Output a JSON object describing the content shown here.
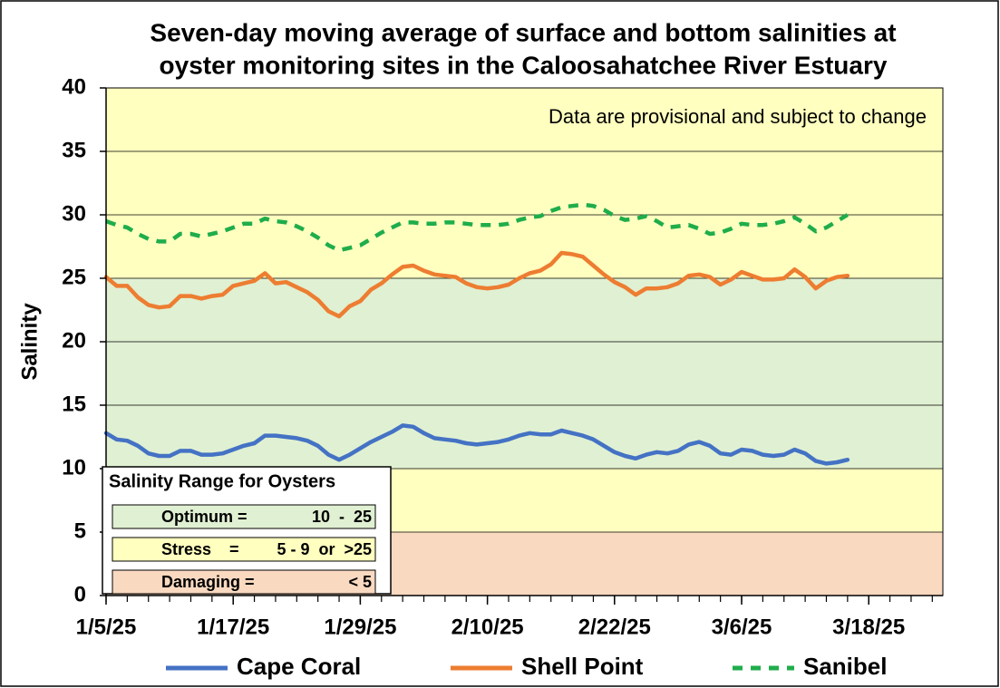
{
  "chart_data": {
    "type": "line",
    "title": [
      "Seven-day moving average of surface and bottom salinities at",
      "oyster monitoring sites in the Caloosahatchee River Estuary"
    ],
    "y_label": "Salinity",
    "annotation": "Data are provisional and subject to change",
    "ylim": [
      0,
      40
    ],
    "yticks": [
      0,
      5,
      10,
      15,
      20,
      25,
      30,
      35,
      40
    ],
    "grid": true,
    "xlim": [
      "2025-01-05",
      "2025-03-25"
    ],
    "xticks": [
      {
        "value": "2025-01-05",
        "label": "1/5/25"
      },
      {
        "value": "2025-01-17",
        "label": "1/17/25"
      },
      {
        "value": "2025-01-29",
        "label": "1/29/25"
      },
      {
        "value": "2025-02-10",
        "label": "2/10/25"
      },
      {
        "value": "2025-02-22",
        "label": "2/22/25"
      },
      {
        "value": "2025-03-06",
        "label": "3/6/25"
      },
      {
        "value": "2025-03-18",
        "label": "3/18/25"
      }
    ],
    "xminorticks": [
      "2025-01-05",
      "2025-01-07",
      "2025-01-09",
      "2025-01-11",
      "2025-01-13",
      "2025-01-15",
      "2025-01-17",
      "2025-01-19",
      "2025-01-21",
      "2025-01-23",
      "2025-01-25",
      "2025-01-27",
      "2025-01-29",
      "2025-01-31",
      "2025-02-02",
      "2025-02-04",
      "2025-02-06",
      "2025-02-08",
      "2025-02-10",
      "2025-02-12",
      "2025-02-14",
      "2025-02-16",
      "2025-02-18",
      "2025-02-20",
      "2025-02-22",
      "2025-02-24",
      "2025-02-26",
      "2025-02-28",
      "2025-03-02",
      "2025-03-04",
      "2025-03-06",
      "2025-03-08",
      "2025-03-10",
      "2025-03-12",
      "2025-03-14",
      "2025-03-16",
      "2025-03-18",
      "2025-03-20",
      "2025-03-22",
      "2025-03-24"
    ],
    "zones": [
      {
        "ymin": 0,
        "ymax": 5,
        "color": "#f9d9c0"
      },
      {
        "ymin": 5,
        "ymax": 10,
        "color": "#ffffbf"
      },
      {
        "ymin": 10,
        "ymax": 25,
        "color": "#e0f0d2"
      },
      {
        "ymin": 25,
        "ymax": 40,
        "color": "#ffffbf"
      }
    ],
    "zone_legend": {
      "title": "Salinity Range for Oysters",
      "entries": [
        {
          "label": "Optimum =",
          "range": "10  -  25",
          "color": "#e0f0d2"
        },
        {
          "label": "Stress    =",
          "range": "5 - 9  or  >25",
          "color": "#ffffbf"
        },
        {
          "label": "Damaging =",
          "range": "< 5",
          "color": "#f9d9c0"
        }
      ]
    },
    "x": [
      "2025-01-05",
      "2025-01-06",
      "2025-01-07",
      "2025-01-08",
      "2025-01-09",
      "2025-01-10",
      "2025-01-11",
      "2025-01-12",
      "2025-01-13",
      "2025-01-14",
      "2025-01-15",
      "2025-01-16",
      "2025-01-17",
      "2025-01-18",
      "2025-01-19",
      "2025-01-20",
      "2025-01-21",
      "2025-01-22",
      "2025-01-23",
      "2025-01-24",
      "2025-01-25",
      "2025-01-26",
      "2025-01-27",
      "2025-01-28",
      "2025-01-29",
      "2025-01-30",
      "2025-01-31",
      "2025-02-01",
      "2025-02-02",
      "2025-02-03",
      "2025-02-04",
      "2025-02-05",
      "2025-02-06",
      "2025-02-07",
      "2025-02-08",
      "2025-02-09",
      "2025-02-10",
      "2025-02-11",
      "2025-02-12",
      "2025-02-13",
      "2025-02-14",
      "2025-02-15",
      "2025-02-16",
      "2025-02-17",
      "2025-02-18",
      "2025-02-19",
      "2025-02-20",
      "2025-02-21",
      "2025-02-22",
      "2025-02-23",
      "2025-02-24",
      "2025-02-25",
      "2025-02-26",
      "2025-02-27",
      "2025-02-28",
      "2025-03-01",
      "2025-03-02",
      "2025-03-03",
      "2025-03-04",
      "2025-03-05",
      "2025-03-06",
      "2025-03-07",
      "2025-03-08",
      "2025-03-09",
      "2025-03-10",
      "2025-03-11",
      "2025-03-12",
      "2025-03-13",
      "2025-03-14",
      "2025-03-15",
      "2025-03-16"
    ],
    "series": [
      {
        "name": "Cape Coral",
        "color": "#4472c4",
        "dashed": false,
        "values": [
          12.8,
          12.3,
          12.2,
          11.8,
          11.2,
          11.0,
          11.0,
          11.4,
          11.4,
          11.1,
          11.1,
          11.2,
          11.5,
          11.8,
          12.0,
          12.6,
          12.6,
          12.5,
          12.4,
          12.2,
          11.8,
          11.1,
          10.7,
          11.1,
          11.6,
          12.1,
          12.5,
          12.9,
          13.4,
          13.3,
          12.8,
          12.4,
          12.3,
          12.2,
          12.0,
          11.9,
          12.0,
          12.1,
          12.3,
          12.6,
          12.8,
          12.7,
          12.7,
          13.0,
          12.8,
          12.6,
          12.3,
          11.8,
          11.3,
          11.0,
          10.8,
          11.1,
          11.3,
          11.2,
          11.4,
          11.9,
          12.1,
          11.8,
          11.2,
          11.1,
          11.5,
          11.4,
          11.1,
          11.0,
          11.1,
          11.5,
          11.2,
          10.6,
          10.4,
          10.5,
          10.7
        ]
      },
      {
        "name": "Shell Point",
        "color": "#ed7d31",
        "dashed": false,
        "values": [
          25.1,
          24.4,
          24.4,
          23.5,
          22.9,
          22.7,
          22.8,
          23.6,
          23.6,
          23.4,
          23.6,
          23.7,
          24.4,
          24.6,
          24.8,
          25.4,
          24.6,
          24.7,
          24.3,
          23.9,
          23.3,
          22.4,
          22.0,
          22.8,
          23.2,
          24.1,
          24.6,
          25.3,
          25.9,
          26.0,
          25.6,
          25.3,
          25.2,
          25.1,
          24.6,
          24.3,
          24.2,
          24.3,
          24.5,
          25.0,
          25.4,
          25.6,
          26.1,
          27.0,
          26.9,
          26.7,
          26.0,
          25.3,
          24.7,
          24.3,
          23.7,
          24.2,
          24.2,
          24.3,
          24.6,
          25.2,
          25.3,
          25.1,
          24.5,
          24.9,
          25.5,
          25.2,
          24.9,
          24.9,
          25.0,
          25.7,
          25.1,
          24.2,
          24.8,
          25.1,
          25.2
        ]
      },
      {
        "name": "Sanibel",
        "color": "#1fad4b",
        "dashed": true,
        "values": [
          29.5,
          29.2,
          29.0,
          28.5,
          28.1,
          27.9,
          27.9,
          28.5,
          28.5,
          28.3,
          28.5,
          28.7,
          29.0,
          29.3,
          29.3,
          29.7,
          29.5,
          29.4,
          29.1,
          28.7,
          28.2,
          27.6,
          27.2,
          27.4,
          27.6,
          28.1,
          28.6,
          29.0,
          29.4,
          29.4,
          29.3,
          29.3,
          29.4,
          29.4,
          29.3,
          29.2,
          29.2,
          29.2,
          29.3,
          29.6,
          29.8,
          29.9,
          30.3,
          30.6,
          30.7,
          30.8,
          30.7,
          30.4,
          29.9,
          29.6,
          29.7,
          29.9,
          29.5,
          29.0,
          29.1,
          29.2,
          28.9,
          28.5,
          28.6,
          28.9,
          29.3,
          29.2,
          29.2,
          29.3,
          29.5,
          29.8,
          29.3,
          28.7,
          29.0,
          29.5,
          30.0
        ]
      }
    ]
  }
}
